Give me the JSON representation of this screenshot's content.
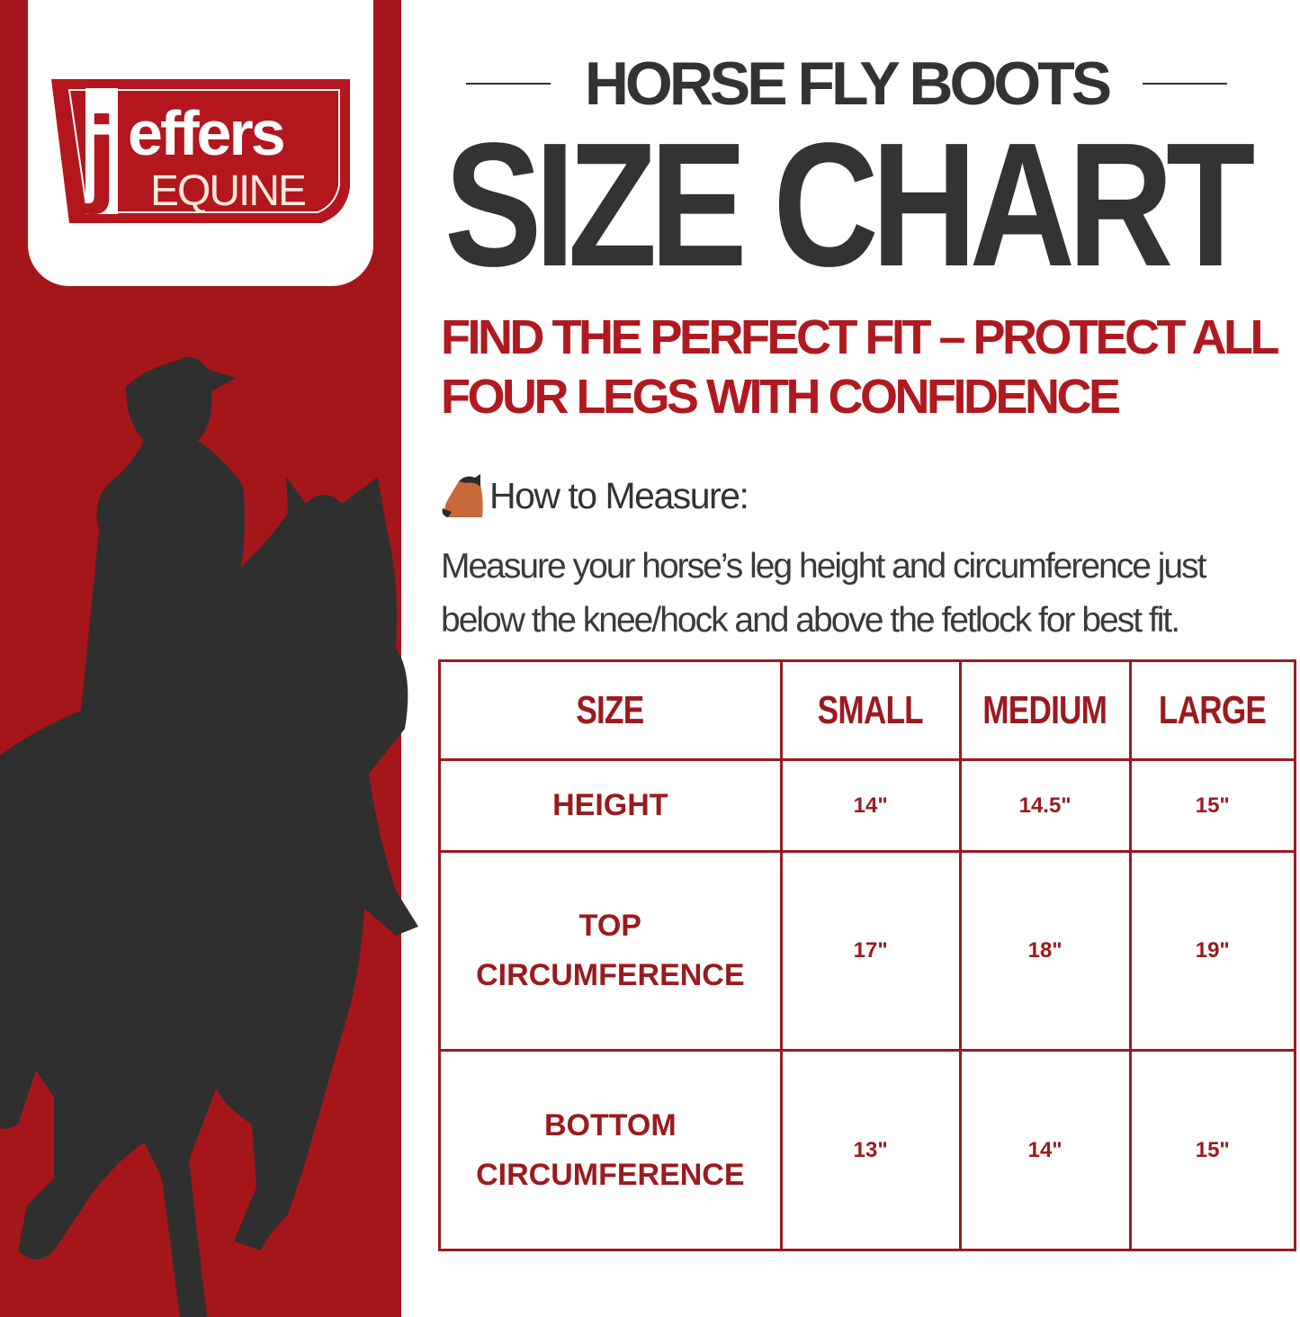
{
  "brand": {
    "logo_text": "jeffers",
    "logo_subtext": "EQUINE",
    "accent": "#a5161b"
  },
  "header": {
    "kicker": "HORSE FLY BOOTS",
    "title": "SIZE CHART"
  },
  "tagline": {
    "line1": "FIND THE PERFECT FIT – PROTECT ALL",
    "line2": "FOUR LEGS WITH CONFIDENCE"
  },
  "measure": {
    "icon": "horse-head-icon",
    "heading": "How to Measure:",
    "line1": "Measure your horse’s leg height and circumference just",
    "line2": "below the knee/hock and above the fetlock for best fit."
  },
  "table": {
    "headers": [
      "SIZE",
      "SMALL",
      "MEDIUM",
      "LARGE"
    ],
    "rows": [
      {
        "label1": "HEIGHT",
        "label2": "",
        "values": [
          "14\"",
          "14.5\"",
          "15\""
        ]
      },
      {
        "label1": "TOP",
        "label2": "CIRCUMFERENCE",
        "values": [
          "17\"",
          "18\"",
          "19\""
        ]
      },
      {
        "label1": "BOTTOM",
        "label2": "CIRCUMFERENCE",
        "values": [
          "13\"",
          "14\"",
          "15\""
        ]
      }
    ]
  }
}
